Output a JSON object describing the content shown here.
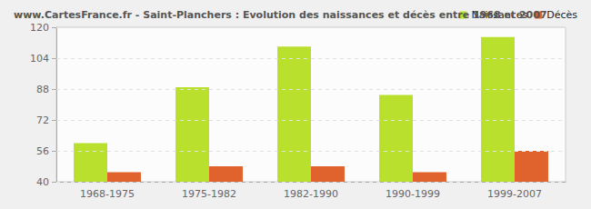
{
  "chart_data": {
    "type": "bar",
    "title": "www.CartesFrance.fr - Saint-Planchers : Evolution des naissances et décès entre 1968 et 2007",
    "categories": [
      "1968-1975",
      "1975-1982",
      "1982-1990",
      "1990-1999",
      "1999-2007"
    ],
    "series": [
      {
        "name": "Naissances",
        "color": "#b8e02c",
        "values": [
          60,
          89,
          110,
          85,
          115
        ]
      },
      {
        "name": "Décès",
        "color": "#e0622c",
        "values": [
          45,
          48,
          48,
          45,
          56
        ]
      }
    ],
    "ylim": [
      40,
      120
    ],
    "yticks": [
      40,
      56,
      72,
      88,
      104,
      120
    ],
    "grid": true,
    "legend": "top-right"
  }
}
